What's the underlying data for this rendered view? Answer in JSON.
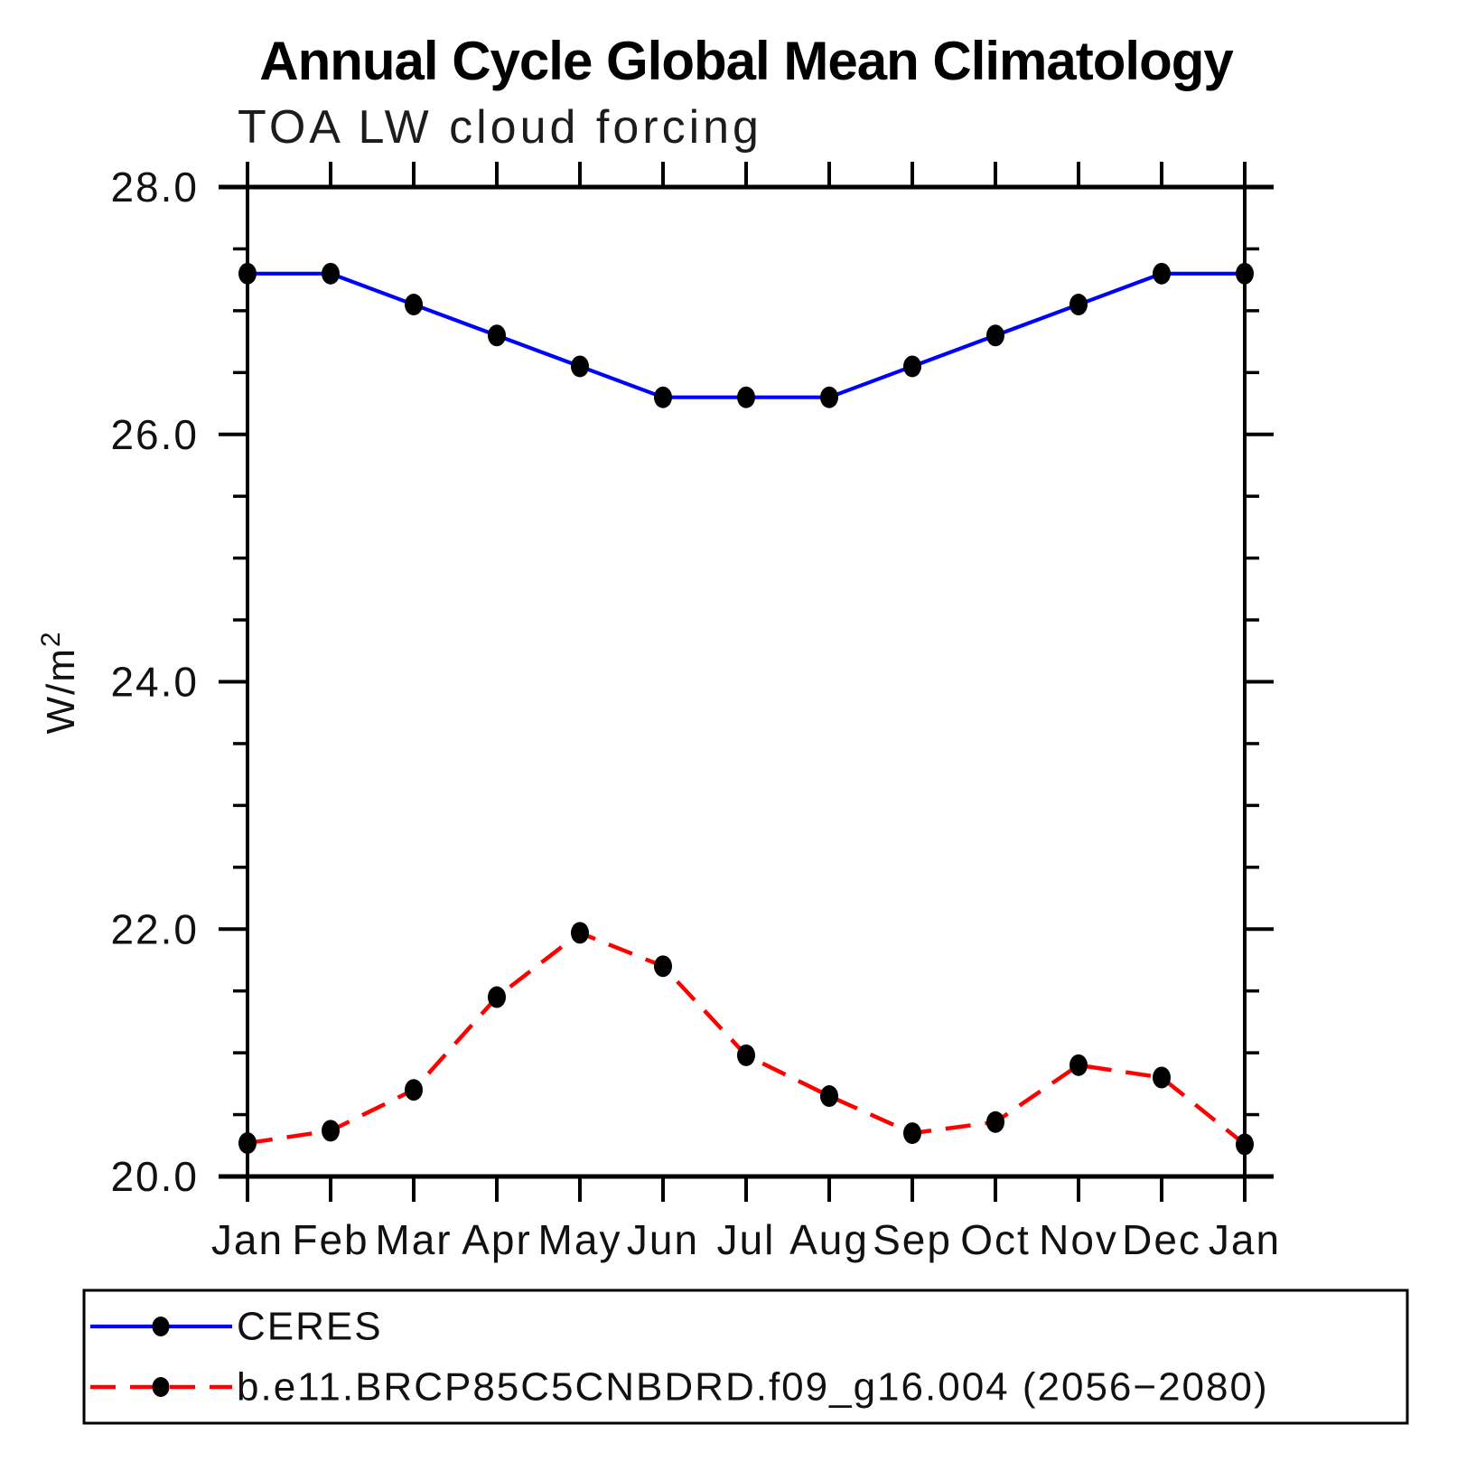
{
  "header": {
    "title": "Annual Cycle Global Mean Climatology",
    "subtitle": "TOA LW cloud forcing"
  },
  "chart_data": {
    "type": "line",
    "title": "Annual Cycle Global Mean Climatology",
    "subtitle": "TOA LW cloud forcing",
    "ylabel": "W/m²",
    "xlabel": "",
    "categories": [
      "Jan",
      "Feb",
      "Mar",
      "Apr",
      "May",
      "Jun",
      "Jul",
      "Aug",
      "Sep",
      "Oct",
      "Nov",
      "Dec",
      "Jan"
    ],
    "ylim": [
      20.0,
      28.0
    ],
    "yticks": [
      20.0,
      22.0,
      24.0,
      26.0,
      28.0
    ],
    "ytick_labels": [
      "20.0",
      "22.0",
      "24.0",
      "26.0",
      "28.0"
    ],
    "minor_tick_step": 0.5,
    "grid": false,
    "legend_position": "bottom-left-box",
    "marker_color": "#000000",
    "series": [
      {
        "name": "CERES",
        "color": "#0000ff",
        "line_style": "solid",
        "marker": "filled-dot",
        "values": [
          27.3,
          27.3,
          27.05,
          26.8,
          26.55,
          26.3,
          26.3,
          26.3,
          26.55,
          26.8,
          27.05,
          27.3,
          27.3
        ]
      },
      {
        "name": "b.e11.BRCP85C5CNBDRD.f09_g16.004 (2056−2080)",
        "color": "#ff0000",
        "line_style": "dashed",
        "marker": "filled-dot",
        "values": [
          20.27,
          20.37,
          20.7,
          21.45,
          21.97,
          21.7,
          20.98,
          20.65,
          20.35,
          20.44,
          20.9,
          20.8,
          20.26
        ]
      }
    ]
  }
}
